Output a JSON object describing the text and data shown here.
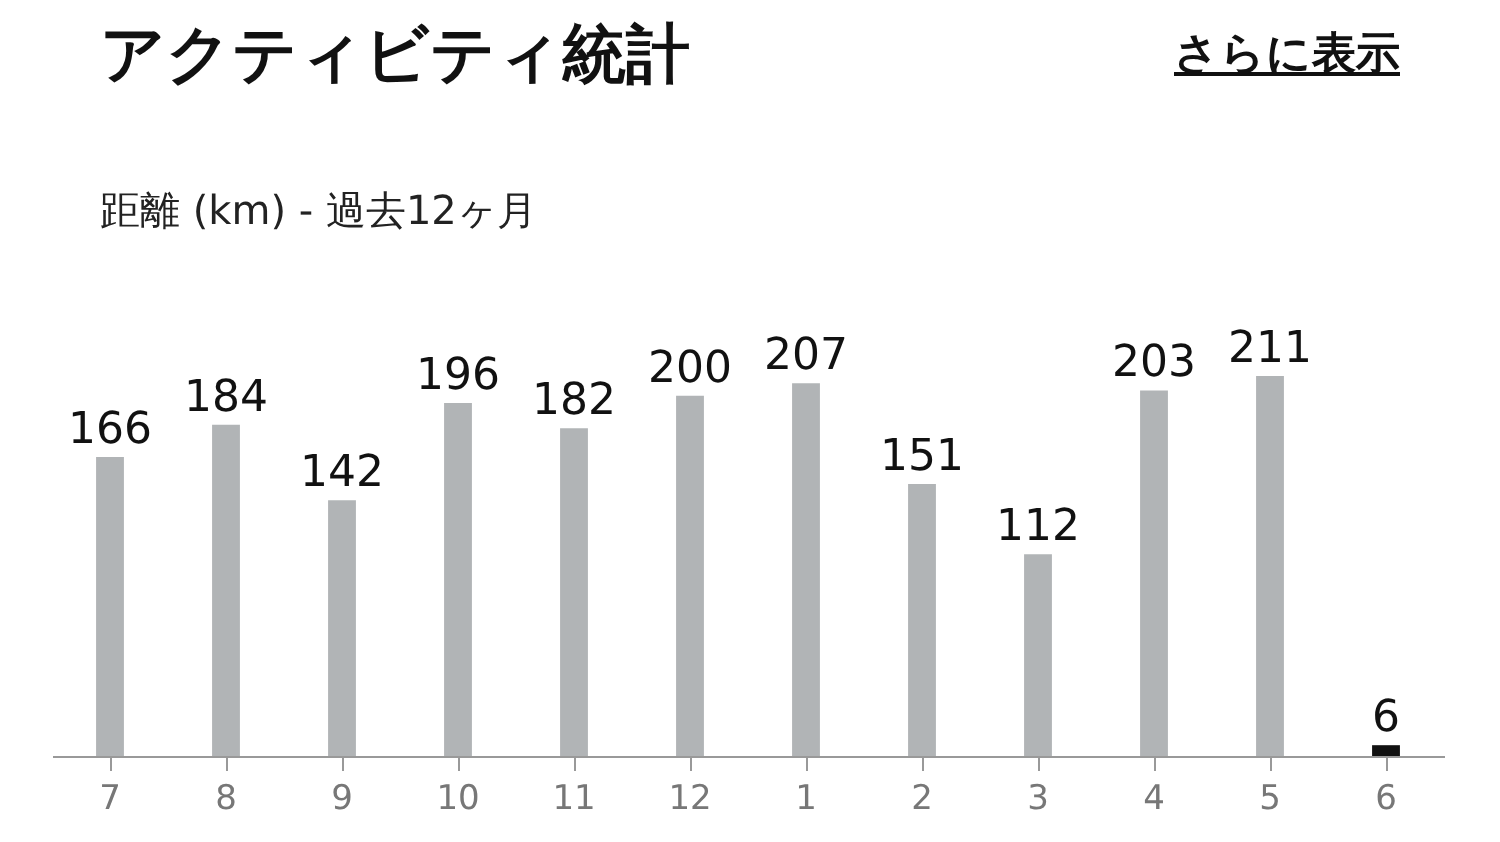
{
  "chart_data": {
    "type": "bar",
    "title": "アクティビティ統計",
    "subtitle": "距離 (km) - 過去12ヶ月",
    "annotations": [
      "さらに表示"
    ],
    "categories": [
      "7",
      "8",
      "9",
      "10",
      "11",
      "12",
      "1",
      "2",
      "3",
      "4",
      "5",
      "6"
    ],
    "values": [
      166,
      184,
      142,
      196,
      182,
      200,
      207,
      151,
      112,
      203,
      211,
      6
    ],
    "colors": [
      "#b1b4b6",
      "#b1b4b6",
      "#b1b4b6",
      "#b1b4b6",
      "#b1b4b6",
      "#b1b4b6",
      "#b1b4b6",
      "#b1b4b6",
      "#b1b4b6",
      "#b1b4b6",
      "#b1b4b6",
      "#111111"
    ],
    "data_labels": true,
    "tick_labels": "x",
    "grid": false,
    "legend": false
  }
}
